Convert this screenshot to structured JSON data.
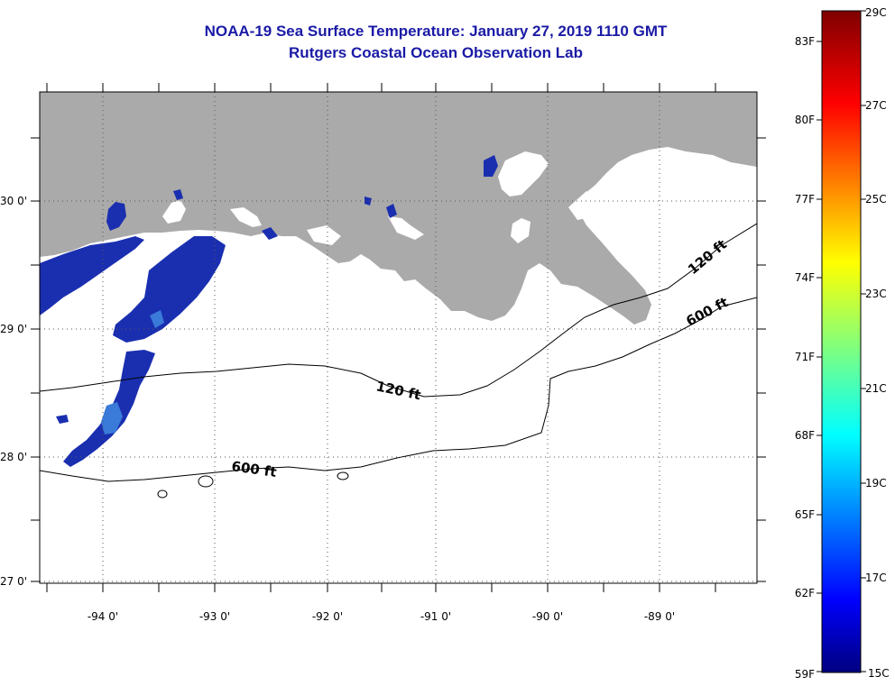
{
  "header": {
    "title": "NOAA-19 Sea Surface Temperature:  January 27, 2019 1110 GMT",
    "subtitle": "Rutgers Coastal Ocean Observation Lab"
  },
  "map": {
    "lat_labels": [
      "30 0'",
      "29 0'",
      "28 0'",
      "27 0'"
    ],
    "lon_labels": [
      "-94 0'",
      "-93 0'",
      "-92 0'",
      "-91 0'",
      "-90 0'",
      "-89 0'"
    ],
    "contour_labels": [
      "120 ft",
      "600 ft",
      "120 ft",
      "600 ft"
    ],
    "colors": {
      "land": "#aaaaaa",
      "water_nodata": "#ffffff",
      "cold": "#1a2fb0"
    }
  },
  "colorbar": {
    "fahrenheit_labels": [
      "83F",
      "80F",
      "77F",
      "74F",
      "71F",
      "68F",
      "65F",
      "62F",
      "59F"
    ],
    "celsius_labels": [
      "29C",
      "27C",
      "25C",
      "23C",
      "21C",
      "19C",
      "17C",
      "15C"
    ],
    "range_celsius": [
      15,
      29
    ]
  }
}
